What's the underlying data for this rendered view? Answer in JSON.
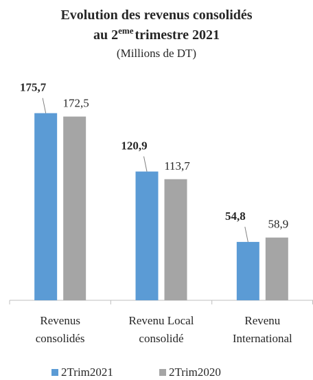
{
  "chart_data": {
    "type": "bar",
    "title": {
      "line1": "Evolution des revenus consolidés",
      "line2_start": "au 2",
      "line2_superscript": "eme",
      "line2_end": "trimestre 2021"
    },
    "subtitle": "(Millions de DT)",
    "categories": [
      [
        "Revenus",
        "consolidés"
      ],
      [
        "Revenu Local",
        "consolidé"
      ],
      [
        "Revenu",
        "International"
      ]
    ],
    "series": [
      {
        "name": "2Trim2021",
        "color": "#5b9bd5",
        "values": [
          175.7,
          120.9,
          54.8
        ],
        "value_labels": [
          "175,7",
          "120,9",
          "54,8"
        ]
      },
      {
        "name": "2Trim2020",
        "color": "#a5a5a5",
        "values": [
          172.5,
          113.7,
          58.9
        ],
        "value_labels": [
          "172,5",
          "113,7",
          "58,9"
        ]
      }
    ],
    "ylim": [
      0,
      200
    ]
  }
}
